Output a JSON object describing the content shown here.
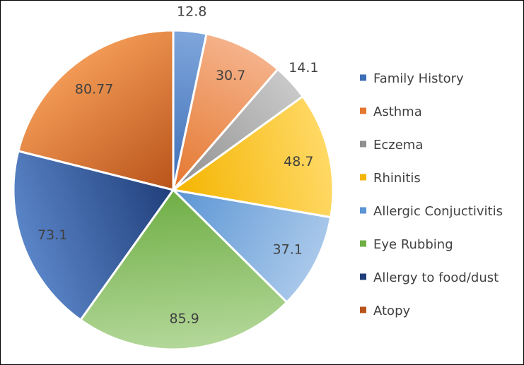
{
  "chart_data": {
    "type": "pie",
    "title": "",
    "legend_position": "right",
    "slices": [
      {
        "label": "Family History",
        "value": 12.8,
        "value_label": "12.8",
        "color_light": "#7fa6dc",
        "color_dark": "#3e6fb6"
      },
      {
        "label": "Asthma",
        "value": 30.7,
        "value_label": "30.7",
        "color_light": "#f5b28a",
        "color_dark": "#e4772f"
      },
      {
        "label": "Eczema",
        "value": 14.1,
        "value_label": "14.1",
        "color_light": "#c9c9c9",
        "color_dark": "#8f8f8f"
      },
      {
        "label": "Rhinitis",
        "value": 48.7,
        "value_label": "48.7",
        "color_light": "#ffd966",
        "color_dark": "#f4b400"
      },
      {
        "label": "Allergic Conjuctivitis",
        "value": 37.1,
        "value_label": "37.1",
        "color_light": "#a9c8ea",
        "color_dark": "#5b95d4"
      },
      {
        "label": "Eye Rubbing",
        "value": 85.9,
        "value_label": "85.9",
        "color_light": "#b4d89a",
        "color_dark": "#6fae45"
      },
      {
        "label": "Allergy to food/dust",
        "value": 73.1,
        "value_label": "73.1",
        "color_light": "#5a85c8",
        "color_dark": "#203e7a"
      },
      {
        "label": "Atopy",
        "value": 80.77,
        "value_label": "80.77",
        "color_light": "#f29a55",
        "color_dark": "#b9531a"
      }
    ]
  }
}
